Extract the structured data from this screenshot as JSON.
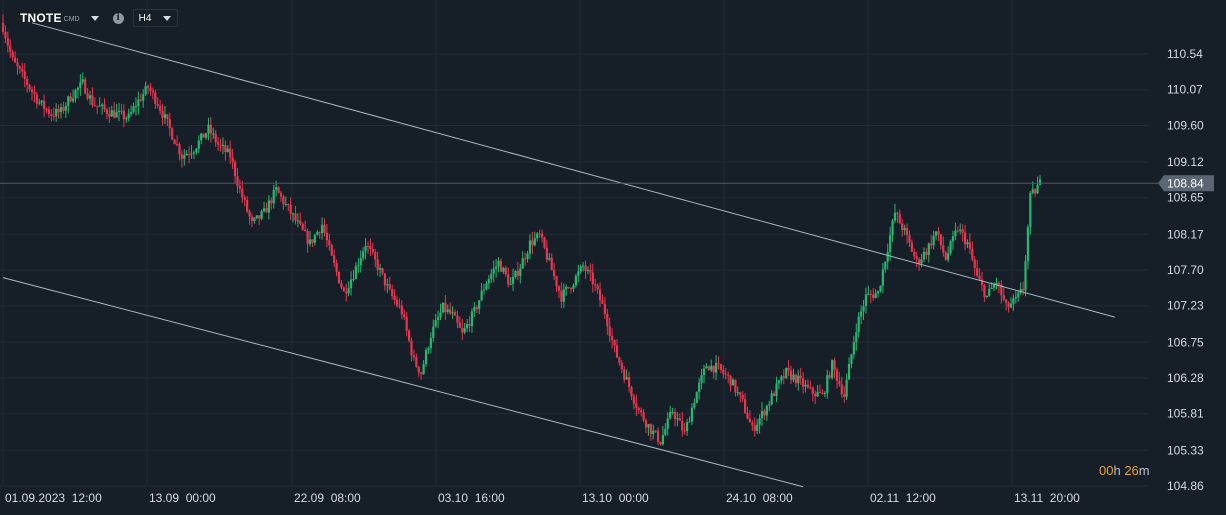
{
  "toolbar": {
    "symbol": "TNOTE",
    "symbol_tag": "CMD",
    "timeframe": "H4",
    "symbol_caret_icon": "chevron-down-icon",
    "info_icon": "info-icon"
  },
  "countdown": {
    "h_value": "00",
    "h_unit": "h",
    "m_value": "26",
    "m_unit": "m"
  },
  "colors": {
    "background": "#161e27",
    "grid": "#222c36",
    "up": "#26b86e",
    "down": "#e8364f",
    "channel": "#aab8c6",
    "axis_text": "#d6dbe1",
    "price_tag": "#5a6673",
    "countdown": "#e8a33a"
  },
  "chart_data": {
    "type": "candlestick",
    "instrument": "TNOTE",
    "timeframe": "H4",
    "x_tick_labels": [
      "01.09.2023  12:00",
      "13.09  00:00",
      "22.09  08:00",
      "03.10  16:00",
      "13.10  00:00",
      "24.10  08:00",
      "02.11  12:00",
      "13.11  20:00"
    ],
    "y_ticks": [
      110.54,
      110.07,
      109.6,
      109.12,
      108.65,
      108.17,
      107.7,
      107.23,
      106.75,
      106.28,
      105.81,
      105.33,
      104.86
    ],
    "ylim": [
      104.86,
      110.54
    ],
    "current_price": 108.84,
    "current_price_label": "108.84",
    "grid": true,
    "close_path": [
      [
        0,
        110.9
      ],
      [
        4,
        110.45
      ],
      [
        10,
        110.15
      ],
      [
        15,
        109.9
      ],
      [
        20,
        109.75
      ],
      [
        24,
        109.78
      ],
      [
        28,
        109.98
      ],
      [
        33,
        110.15
      ],
      [
        37,
        109.9
      ],
      [
        42,
        109.8
      ],
      [
        47,
        109.75
      ],
      [
        52,
        109.7
      ],
      [
        55,
        109.88
      ],
      [
        60,
        110.1
      ],
      [
        64,
        109.9
      ],
      [
        69,
        109.55
      ],
      [
        74,
        109.2
      ],
      [
        79,
        109.3
      ],
      [
        85,
        109.55
      ],
      [
        89,
        109.35
      ],
      [
        94,
        109.2
      ],
      [
        98,
        108.75
      ],
      [
        103,
        108.3
      ],
      [
        108,
        108.45
      ],
      [
        113,
        108.75
      ],
      [
        117,
        108.55
      ],
      [
        122,
        108.3
      ],
      [
        127,
        108.05
      ],
      [
        132,
        108.3
      ],
      [
        136,
        107.85
      ],
      [
        141,
        107.4
      ],
      [
        145,
        107.65
      ],
      [
        150,
        108.05
      ],
      [
        155,
        107.75
      ],
      [
        160,
        107.4
      ],
      [
        165,
        107.15
      ],
      [
        170,
        106.5
      ],
      [
        173,
        106.35
      ],
      [
        177,
        106.85
      ],
      [
        182,
        107.2
      ],
      [
        186,
        107.1
      ],
      [
        190,
        106.85
      ],
      [
        195,
        107.15
      ],
      [
        200,
        107.55
      ],
      [
        205,
        107.8
      ],
      [
        210,
        107.5
      ],
      [
        214,
        107.75
      ],
      [
        218,
        108.05
      ],
      [
        222,
        108.15
      ],
      [
        227,
        107.7
      ],
      [
        231,
        107.35
      ],
      [
        236,
        107.55
      ],
      [
        240,
        107.75
      ],
      [
        244,
        107.55
      ],
      [
        249,
        107.15
      ],
      [
        253,
        106.65
      ],
      [
        258,
        106.25
      ],
      [
        263,
        105.85
      ],
      [
        268,
        105.6
      ],
      [
        272,
        105.45
      ],
      [
        277,
        105.85
      ],
      [
        282,
        105.55
      ],
      [
        286,
        106.0
      ],
      [
        291,
        106.45
      ],
      [
        296,
        106.4
      ],
      [
        301,
        106.25
      ],
      [
        306,
        105.95
      ],
      [
        310,
        105.6
      ],
      [
        315,
        105.85
      ],
      [
        320,
        106.15
      ],
      [
        324,
        106.35
      ],
      [
        329,
        106.25
      ],
      [
        334,
        106.1
      ],
      [
        339,
        106.05
      ],
      [
        343,
        106.45
      ],
      [
        348,
        106.05
      ],
      [
        353,
        106.95
      ],
      [
        357,
        107.35
      ],
      [
        362,
        107.4
      ],
      [
        366,
        108.0
      ],
      [
        369,
        108.45
      ],
      [
        373,
        108.2
      ],
      [
        378,
        107.8
      ],
      [
        382,
        107.95
      ],
      [
        386,
        108.2
      ],
      [
        390,
        107.85
      ],
      [
        395,
        108.25
      ],
      [
        399,
        108.05
      ],
      [
        403,
        107.6
      ],
      [
        407,
        107.35
      ],
      [
        411,
        107.55
      ],
      [
        415,
        107.2
      ],
      [
        419,
        107.3
      ],
      [
        422,
        107.45
      ],
      [
        425,
        108.65
      ],
      [
        429,
        108.84
      ]
    ],
    "trend_channel": {
      "upper": [
        [
          12,
          110.95
        ],
        [
          460,
          107.08
        ]
      ],
      "lower": [
        [
          0,
          107.6
        ],
        [
          331,
          104.85
        ]
      ]
    }
  }
}
